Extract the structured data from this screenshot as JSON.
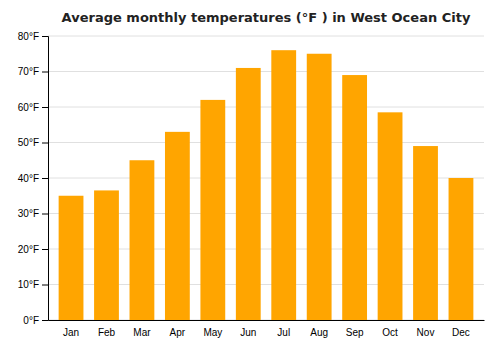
{
  "chart_data": {
    "type": "bar",
    "title": "Average monthly temperatures (°F ) in West Ocean City",
    "categories": [
      "Jan",
      "Feb",
      "Mar",
      "Apr",
      "May",
      "Jun",
      "Jul",
      "Aug",
      "Sep",
      "Oct",
      "Nov",
      "Dec"
    ],
    "values": [
      35,
      36.5,
      45,
      53,
      62,
      71,
      76,
      75,
      69,
      58.5,
      49,
      40
    ],
    "color": "#FFA500",
    "ylim": [
      0,
      80
    ],
    "yticks": [
      {
        "value": 0,
        "label": "0°F"
      },
      {
        "value": 10,
        "label": "10°F"
      },
      {
        "value": 20,
        "label": "20°F"
      },
      {
        "value": 30,
        "label": "30°F"
      },
      {
        "value": 40,
        "label": "40°F"
      },
      {
        "value": 50,
        "label": "50°F"
      },
      {
        "value": 60,
        "label": "60°F"
      },
      {
        "value": 70,
        "label": "70°F"
      },
      {
        "value": 80,
        "label": "80°F"
      }
    ],
    "grid": true
  }
}
